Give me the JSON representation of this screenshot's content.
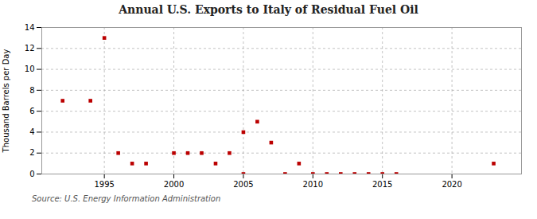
{
  "chart_data": {
    "type": "scatter",
    "title": "Annual U.S. Exports to Italy of Residual Fuel Oil",
    "ylabel": "Thousand Barrels per Day",
    "source": "Source: U.S. Energy Information Administration",
    "x": [
      1992,
      1994,
      1995,
      1996,
      1997,
      1998,
      2000,
      2001,
      2002,
      2003,
      2004,
      2005,
      2005,
      2006,
      2007,
      2008,
      2009,
      2010,
      2011,
      2012,
      2013,
      2014,
      2015,
      2016,
      2023
    ],
    "values": [
      7,
      7,
      13,
      2,
      1,
      1,
      2,
      2,
      2,
      1,
      2,
      4,
      0,
      5,
      3,
      0,
      1,
      0,
      0,
      0,
      0,
      0,
      0,
      0,
      1
    ],
    "color": "#bb0000",
    "marker": "square",
    "xlim": [
      1990.5,
      2025
    ],
    "ylim": [
      0,
      14
    ],
    "xticks": [
      1995,
      2000,
      2005,
      2010,
      2015,
      2020
    ],
    "yticks": [
      0,
      2,
      4,
      6,
      8,
      10,
      12,
      14
    ],
    "grid": true
  }
}
